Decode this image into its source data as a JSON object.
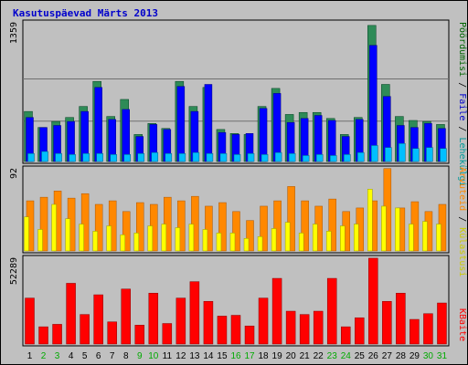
{
  "title": "Kasutuspäevad Märts 2013",
  "chart_data": {
    "type": "bar",
    "categories": [
      "1",
      "2",
      "3",
      "4",
      "5",
      "6",
      "7",
      "8",
      "9",
      "10",
      "11",
      "12",
      "13",
      "14",
      "15",
      "16",
      "17",
      "18",
      "19",
      "20",
      "21",
      "22",
      "23",
      "24",
      "25",
      "26",
      "27",
      "28",
      "29",
      "30",
      "31"
    ],
    "weekend_days": [
      "2",
      "3",
      "9",
      "10",
      "16",
      "17",
      "23",
      "24",
      "30",
      "31"
    ],
    "panels": [
      {
        "name": "top",
        "ymax_label": "1359",
        "ymax": 1359,
        "series": [
          {
            "name": "Pöördumisi",
            "color": "#2e8b57",
            "values": [
              500,
              340,
              400,
              440,
              550,
              800,
              450,
              620,
              270,
              380,
              330,
              800,
              550,
              740,
              320,
              280,
              270,
              550,
              730,
              470,
              490,
              490,
              430,
              270,
              440,
              1359,
              770,
              450,
              410,
              400,
              370
            ]
          },
          {
            "name": "Faile",
            "color": "#0000ff",
            "values": [
              440,
              340,
              360,
              400,
              500,
              740,
              420,
              520,
              250,
              370,
              320,
              750,
              500,
              770,
              290,
              270,
              280,
              530,
              680,
              390,
              430,
              460,
              410,
              250,
              420,
              1160,
              650,
              360,
              340,
              380,
              330
            ]
          },
          {
            "name": "Lehekülgi",
            "color": "#00bfff",
            "values": [
              80,
              100,
              80,
              70,
              80,
              80,
              70,
              70,
              80,
              90,
              80,
              80,
              90,
              80,
              80,
              70,
              80,
              70,
              90,
              80,
              60,
              70,
              60,
              70,
              90,
              160,
              140,
              180,
              130,
              140,
              130
            ]
          }
        ]
      },
      {
        "name": "middle",
        "ymax_label": "92",
        "ymax": 92,
        "series": [
          {
            "name": "Külastusi",
            "color": "#ffff00",
            "values": [
              38,
              24,
              52,
              36,
              30,
              22,
              28,
              18,
              20,
              28,
              30,
              26,
              30,
              24,
              20,
              20,
              14,
              16,
              25,
              32,
              20,
              30,
              22,
              28,
              30,
              69,
              50,
              48,
              30,
              33,
              30
            ]
          },
          {
            "name": "Arvuteid",
            "color": "#ff8800",
            "values": [
              56,
              60,
              67,
              59,
              64,
              52,
              56,
              44,
              54,
              52,
              60,
              56,
              61,
              50,
              54,
              44,
              34,
              50,
              56,
              72,
              56,
              50,
              58,
              44,
              48,
              56,
              92,
              48,
              55,
              44,
              52
            ]
          }
        ]
      },
      {
        "name": "bottom",
        "ymax_label": "52289",
        "ymax": 52289,
        "series": [
          {
            "name": "KBaite",
            "color": "#ff0000",
            "values": [
              28000,
              10500,
              12000,
              37000,
              18000,
              30000,
              13500,
              33500,
              11500,
              31000,
              12500,
              28000,
              38000,
              26000,
              17000,
              17500,
              11000,
              28000,
              40000,
              20000,
              18000,
              20000,
              40000,
              10500,
              16000,
              52289,
              26000,
              31000,
              15000,
              18500,
              25000
            ]
          }
        ]
      }
    ],
    "right_legend": {
      "top": [
        {
          "text": "Pöördumisi",
          "color": "#006400"
        },
        {
          "text": " / ",
          "color": "#000000"
        },
        {
          "text": "Faile",
          "color": "#0000cc"
        },
        {
          "text": " / ",
          "color": "#000000"
        },
        {
          "text": "Lehekülgi",
          "color": "#009999"
        }
      ],
      "middle": [
        {
          "text": "Arvuteid",
          "color": "#ff8800"
        },
        {
          "text": " / ",
          "color": "#000000"
        },
        {
          "text": "Külastusi",
          "color": "#cccc00"
        }
      ],
      "bottom": [
        {
          "text": "KBaite",
          "color": "#ff0000"
        }
      ]
    },
    "colors": {
      "background": "#c0c0c0",
      "weekday_label": "#000000",
      "weekend_label": "#00aa00",
      "gridline": "#707070"
    }
  }
}
